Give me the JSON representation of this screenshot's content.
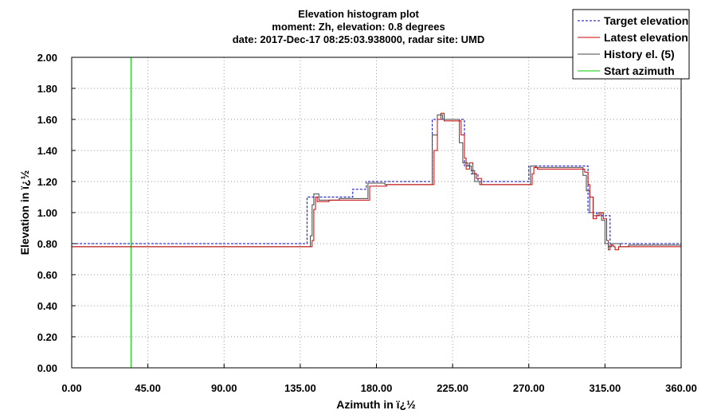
{
  "chart_data": {
    "type": "line",
    "title_lines": [
      "Elevation histogram plot",
      "moment: Zh, elevation: 0.8 degrees",
      "date: 2017-Dec-17 08:25:03.938000, radar site: UMD"
    ],
    "xlabel": "Azimuth in ï¿½",
    "ylabel": "Elevation in ï¿½",
    "xlim": [
      0,
      360
    ],
    "ylim": [
      0,
      2
    ],
    "x_ticks": [
      0,
      45,
      90,
      135,
      180,
      225,
      270,
      315,
      360
    ],
    "x_tick_labels": [
      "0.00",
      "45.00",
      "90.00",
      "135.00",
      "180.00",
      "225.00",
      "270.00",
      "315.00",
      "360.00"
    ],
    "y_ticks": [
      0,
      0.2,
      0.4,
      0.6,
      0.8,
      1.0,
      1.2,
      1.4,
      1.6,
      1.8,
      2.0
    ],
    "y_tick_labels": [
      "0.00",
      "0.20",
      "0.40",
      "0.60",
      "0.80",
      "1.00",
      "1.20",
      "1.40",
      "1.60",
      "1.80",
      "2.00"
    ],
    "grid": true,
    "legend_position": "top-right",
    "start_azimuth": 35,
    "series": [
      {
        "name": "Target elevation",
        "color": "#0000cc",
        "style": "dashed",
        "points": [
          [
            0,
            0.8
          ],
          [
            139,
            0.8
          ],
          [
            139,
            1.1
          ],
          [
            166,
            1.1
          ],
          [
            166,
            1.15
          ],
          [
            174,
            1.15
          ],
          [
            174,
            1.2
          ],
          [
            213,
            1.2
          ],
          [
            213,
            1.6
          ],
          [
            224,
            1.6
          ],
          [
            224,
            1.6
          ],
          [
            232,
            1.6
          ],
          [
            232,
            1.3
          ],
          [
            236,
            1.3
          ],
          [
            236,
            1.25
          ],
          [
            240,
            1.25
          ],
          [
            240,
            1.2
          ],
          [
            270,
            1.2
          ],
          [
            270,
            1.3
          ],
          [
            305,
            1.3
          ],
          [
            305,
            1.0
          ],
          [
            310,
            1.0
          ],
          [
            310,
            0.98
          ],
          [
            318,
            0.98
          ],
          [
            318,
            0.8
          ],
          [
            360,
            0.8
          ]
        ]
      },
      {
        "name": "Latest elevation",
        "color": "#cc0000",
        "style": "solid",
        "points": [
          [
            0,
            0.78
          ],
          [
            142,
            0.78
          ],
          [
            142,
            0.82
          ],
          [
            143,
            0.82
          ],
          [
            143,
            1.02
          ],
          [
            144,
            1.02
          ],
          [
            144,
            1.1
          ],
          [
            145,
            1.1
          ],
          [
            145,
            1.07
          ],
          [
            152,
            1.07
          ],
          [
            152,
            1.08
          ],
          [
            164,
            1.08
          ],
          [
            164,
            1.08
          ],
          [
            176,
            1.08
          ],
          [
            176,
            1.17
          ],
          [
            186,
            1.17
          ],
          [
            186,
            1.18
          ],
          [
            214,
            1.18
          ],
          [
            214,
            1.4
          ],
          [
            216,
            1.4
          ],
          [
            216,
            1.6
          ],
          [
            218,
            1.6
          ],
          [
            218,
            1.64
          ],
          [
            220,
            1.64
          ],
          [
            220,
            1.59
          ],
          [
            230,
            1.59
          ],
          [
            230,
            1.5
          ],
          [
            232,
            1.5
          ],
          [
            232,
            1.35
          ],
          [
            233,
            1.35
          ],
          [
            233,
            1.28
          ],
          [
            235,
            1.28
          ],
          [
            235,
            1.32
          ],
          [
            237,
            1.32
          ],
          [
            237,
            1.25
          ],
          [
            239,
            1.25
          ],
          [
            239,
            1.22
          ],
          [
            242,
            1.22
          ],
          [
            242,
            1.18
          ],
          [
            272,
            1.18
          ],
          [
            272,
            1.25
          ],
          [
            273,
            1.25
          ],
          [
            273,
            1.29
          ],
          [
            275,
            1.29
          ],
          [
            275,
            1.28
          ],
          [
            303,
            1.28
          ],
          [
            303,
            1.26
          ],
          [
            305,
            1.26
          ],
          [
            305,
            1.18
          ],
          [
            306,
            1.18
          ],
          [
            306,
            1.1
          ],
          [
            308,
            1.1
          ],
          [
            308,
            0.96
          ],
          [
            310,
            0.96
          ],
          [
            310,
            0.98
          ],
          [
            312,
            0.98
          ],
          [
            312,
            1.0
          ],
          [
            314,
            1.0
          ],
          [
            314,
            0.96
          ],
          [
            316,
            0.96
          ],
          [
            316,
            0.82
          ],
          [
            317,
            0.82
          ],
          [
            317,
            0.76
          ],
          [
            318,
            0.76
          ],
          [
            318,
            0.79
          ],
          [
            320,
            0.79
          ],
          [
            320,
            0.78
          ],
          [
            321,
            0.78
          ],
          [
            321,
            0.76
          ],
          [
            323,
            0.76
          ],
          [
            323,
            0.78
          ],
          [
            360,
            0.78
          ]
        ]
      },
      {
        "name": "History el. (5)",
        "color": "#444444",
        "style": "solid",
        "points": [
          [
            0,
            0.78
          ],
          [
            141,
            0.78
          ],
          [
            141,
            0.85
          ],
          [
            142,
            0.85
          ],
          [
            142,
            1.05
          ],
          [
            143,
            1.05
          ],
          [
            143,
            1.12
          ],
          [
            146,
            1.12
          ],
          [
            146,
            1.08
          ],
          [
            158,
            1.08
          ],
          [
            158,
            1.09
          ],
          [
            175,
            1.09
          ],
          [
            175,
            1.19
          ],
          [
            185,
            1.19
          ],
          [
            185,
            1.18
          ],
          [
            213,
            1.18
          ],
          [
            213,
            1.5
          ],
          [
            216,
            1.5
          ],
          [
            216,
            1.63
          ],
          [
            219,
            1.63
          ],
          [
            219,
            1.6
          ],
          [
            229,
            1.6
          ],
          [
            229,
            1.45
          ],
          [
            231,
            1.45
          ],
          [
            231,
            1.32
          ],
          [
            234,
            1.32
          ],
          [
            234,
            1.3
          ],
          [
            236,
            1.3
          ],
          [
            236,
            1.27
          ],
          [
            238,
            1.27
          ],
          [
            238,
            1.2
          ],
          [
            241,
            1.2
          ],
          [
            241,
            1.18
          ],
          [
            271,
            1.18
          ],
          [
            271,
            1.3
          ],
          [
            274,
            1.3
          ],
          [
            274,
            1.29
          ],
          [
            302,
            1.29
          ],
          [
            302,
            1.24
          ],
          [
            304,
            1.24
          ],
          [
            304,
            1.14
          ],
          [
            306,
            1.14
          ],
          [
            306,
            1.0
          ],
          [
            308,
            1.0
          ],
          [
            308,
            0.98
          ],
          [
            311,
            0.98
          ],
          [
            311,
            1.0
          ],
          [
            313,
            1.0
          ],
          [
            313,
            0.95
          ],
          [
            315,
            0.95
          ],
          [
            315,
            0.8
          ],
          [
            317,
            0.8
          ],
          [
            317,
            0.78
          ],
          [
            319,
            0.78
          ],
          [
            319,
            0.8
          ],
          [
            324,
            0.8
          ],
          [
            324,
            0.78
          ],
          [
            329,
            0.78
          ],
          [
            329,
            0.79
          ],
          [
            360,
            0.79
          ]
        ]
      },
      {
        "name": "Start azimuth",
        "color": "#00cc00",
        "style": "solid",
        "points": [
          [
            35,
            0
          ],
          [
            35,
            2
          ]
        ]
      }
    ]
  }
}
